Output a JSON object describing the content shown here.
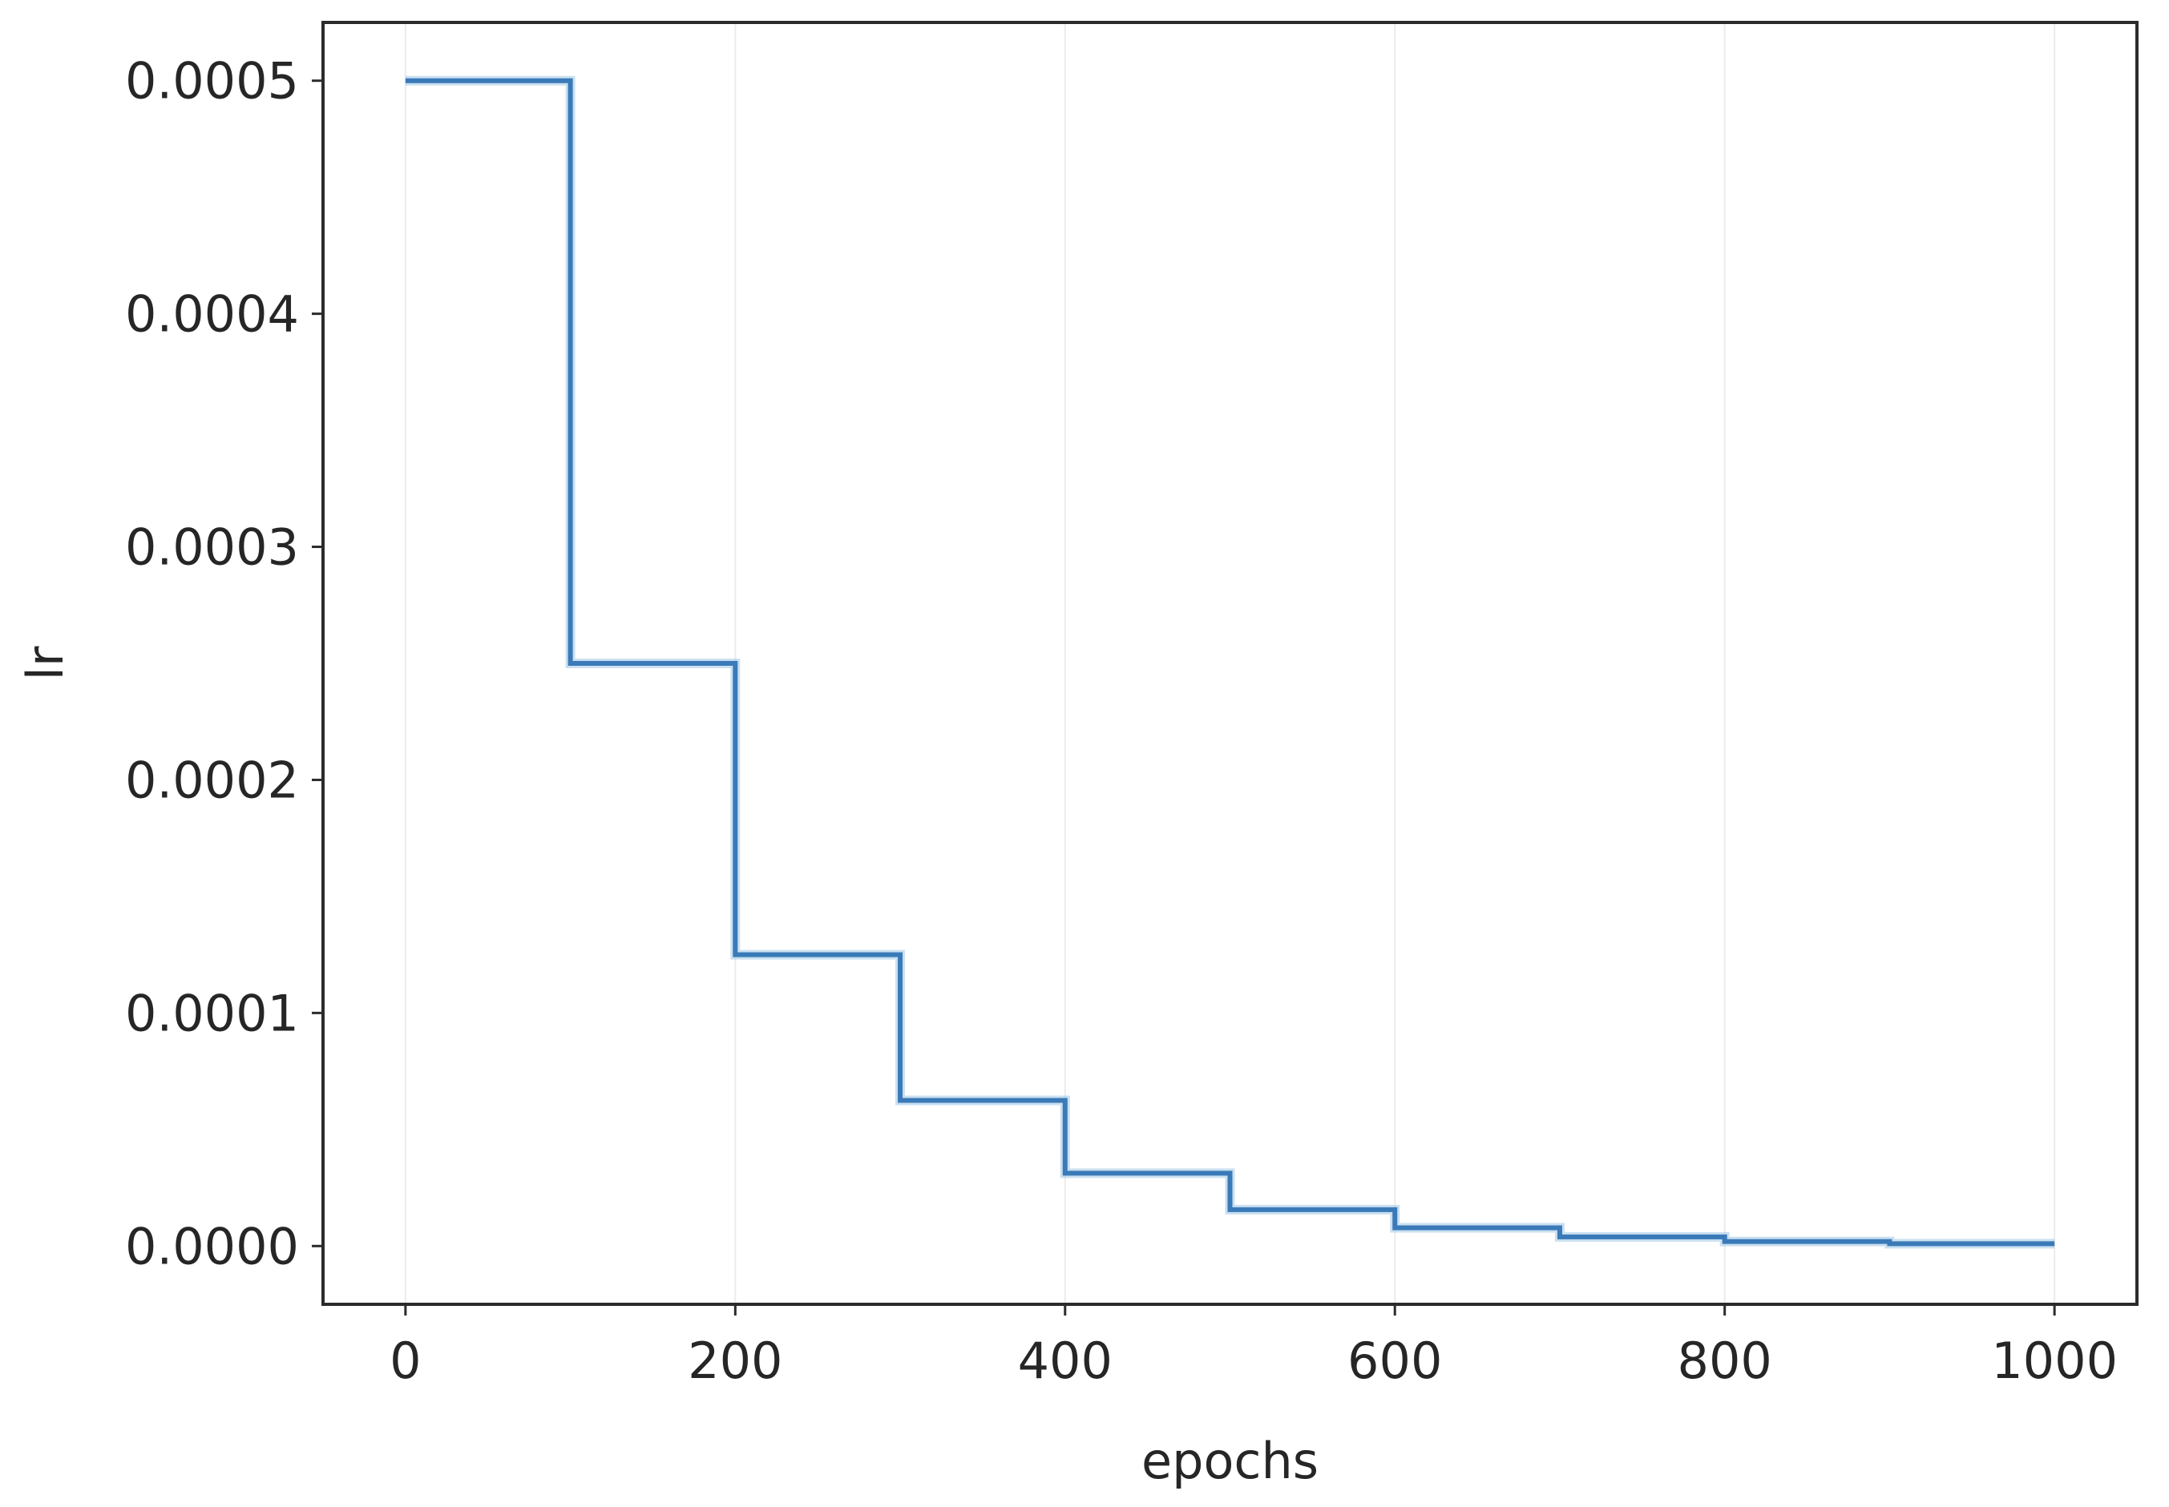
{
  "chart_data": {
    "type": "line",
    "title": "",
    "xlabel": "epochs",
    "ylabel": "lr",
    "xlim": [
      -50,
      1050
    ],
    "ylim": [
      -2.5e-05,
      0.000525
    ],
    "grid": "vertical",
    "legend": "none",
    "xticks": [
      0,
      200,
      400,
      600,
      800,
      1000
    ],
    "xtick_labels": [
      "0",
      "200",
      "400",
      "600",
      "800",
      "1000"
    ],
    "yticks": [
      0,
      0.0001,
      0.0002,
      0.0003,
      0.0004,
      0.0005
    ],
    "ytick_labels": [
      "0.0000",
      "0.0001",
      "0.0002",
      "0.0003",
      "0.0004",
      "0.0005"
    ],
    "series": [
      {
        "color": "#3a7ab8",
        "drawstyle": "step-post",
        "x": [
          0,
          100,
          200,
          300,
          400,
          500,
          600,
          700,
          800,
          900,
          1000
        ],
        "y": [
          0.0005,
          0.00025,
          0.000125,
          6.25e-05,
          3.125e-05,
          1.5625e-05,
          7.8125e-06,
          3.90625e-06,
          1.953125e-06,
          9.765625e-07,
          9.765625e-07
        ]
      }
    ]
  }
}
